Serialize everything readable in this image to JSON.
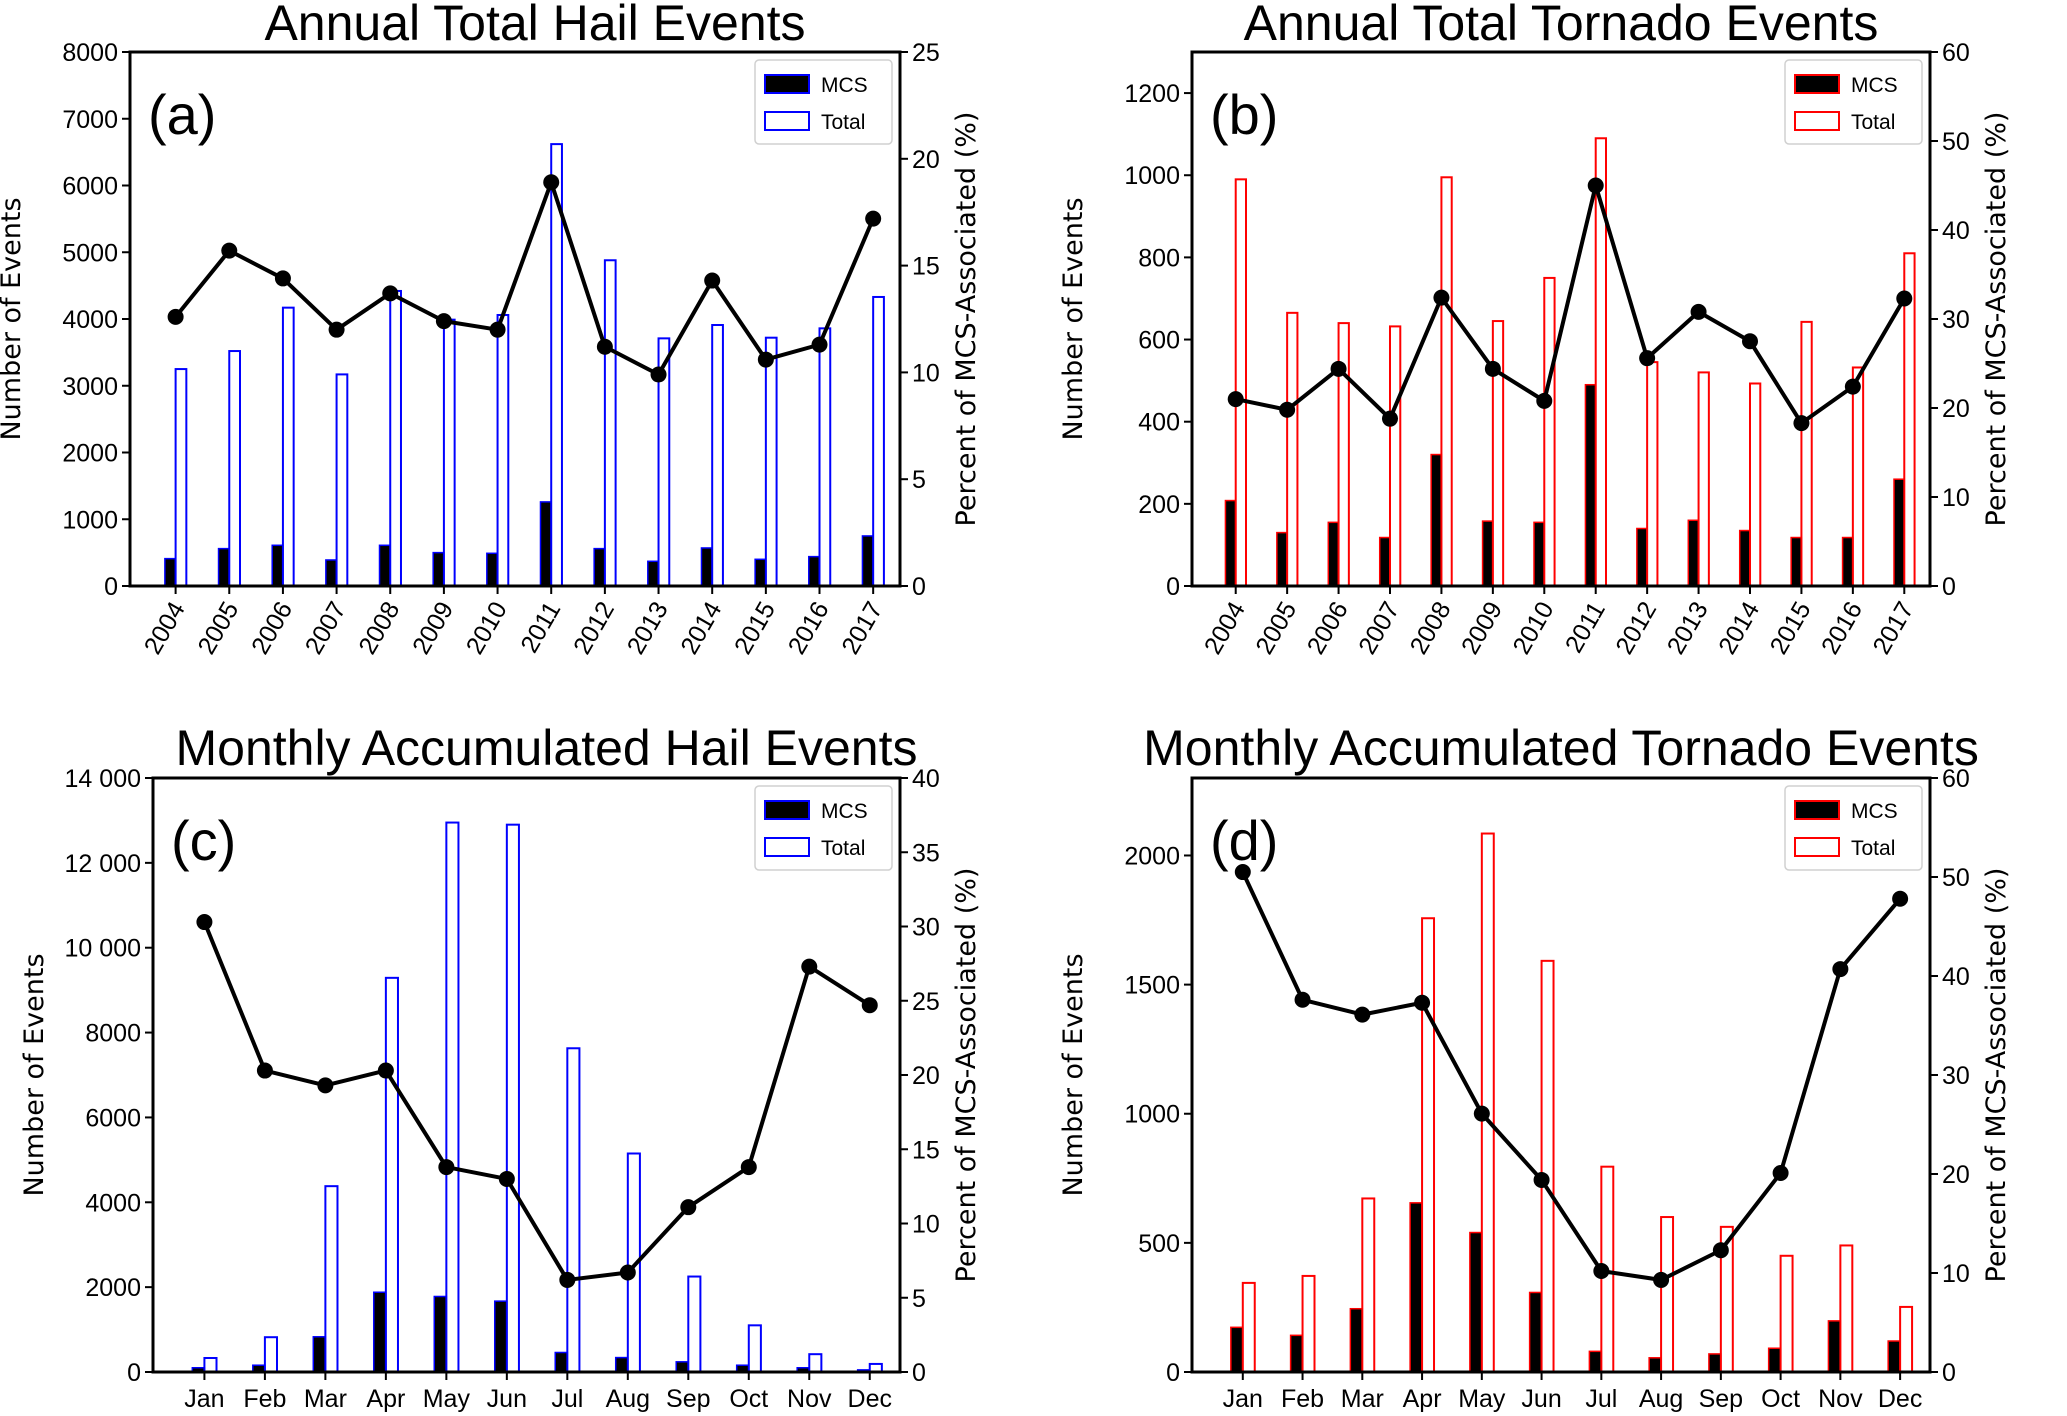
{
  "chart_data": [
    {
      "id": "a",
      "type": "bar",
      "title": "Annual Total Hail Events",
      "panel_label": "(a)",
      "xlabel": "",
      "ylabel": "Number of Events",
      "y2label": "Percent of MCS-Associated (%)",
      "categories": [
        "2004",
        "2005",
        "2006",
        "2007",
        "2008",
        "2009",
        "2010",
        "2011",
        "2012",
        "2013",
        "2014",
        "2015",
        "2016",
        "2017"
      ],
      "x_tick_rotation": "rotated",
      "ylim": [
        0,
        8000
      ],
      "yticks": [
        0,
        1000,
        2000,
        3000,
        4000,
        5000,
        6000,
        7000,
        8000
      ],
      "ytick_labels": [
        "0",
        "1000",
        "2000",
        "3000",
        "4000",
        "5000",
        "6000",
        "7000",
        "8000"
      ],
      "y2lim": [
        0,
        25
      ],
      "y2ticks": [
        0,
        5,
        10,
        15,
        20,
        25
      ],
      "y2tick_labels": [
        "0",
        "5",
        "10",
        "15",
        "20",
        "25"
      ],
      "bar_edge_color": "#0000ff",
      "legend": {
        "placement": "top-right",
        "entries": [
          "MCS",
          "Total"
        ]
      },
      "series": [
        {
          "name": "MCS",
          "kind": "bar-filled",
          "values": [
            410,
            560,
            610,
            390,
            610,
            500,
            490,
            1260,
            560,
            370,
            570,
            400,
            440,
            750
          ]
        },
        {
          "name": "Total",
          "kind": "bar-outline",
          "values": [
            3250,
            3520,
            4170,
            3170,
            4420,
            3990,
            4060,
            6620,
            4880,
            3710,
            3910,
            3720,
            3860,
            4330
          ]
        },
        {
          "name": "Percent of MCS-Associated",
          "kind": "line",
          "axis": "right",
          "values": [
            12.6,
            15.7,
            14.4,
            12.0,
            13.7,
            12.4,
            12.0,
            18.9,
            11.2,
            9.9,
            14.3,
            10.6,
            11.3,
            17.2
          ]
        }
      ]
    },
    {
      "id": "b",
      "type": "bar",
      "title": "Annual Total Tornado Events",
      "panel_label": "(b)",
      "xlabel": "",
      "ylabel": "Number of Events",
      "y2label": "Percent of MCS-Associated (%)",
      "categories": [
        "2004",
        "2005",
        "2006",
        "2007",
        "2008",
        "2009",
        "2010",
        "2011",
        "2012",
        "2013",
        "2014",
        "2015",
        "2016",
        "2017"
      ],
      "x_tick_rotation": "rotated",
      "ylim": [
        0,
        1300
      ],
      "yticks": [
        0,
        200,
        400,
        600,
        800,
        1000,
        1200
      ],
      "ytick_labels": [
        "0",
        "200",
        "400",
        "600",
        "800",
        "1000",
        "1200"
      ],
      "y2lim": [
        0,
        60
      ],
      "y2ticks": [
        0,
        10,
        20,
        30,
        40,
        50,
        60
      ],
      "y2tick_labels": [
        "0",
        "10",
        "20",
        "30",
        "40",
        "50",
        "60"
      ],
      "bar_edge_color": "#ff0000",
      "legend": {
        "placement": "top-right",
        "entries": [
          "MCS",
          "Total"
        ]
      },
      "series": [
        {
          "name": "MCS",
          "kind": "bar-filled",
          "values": [
            208,
            130,
            155,
            118,
            320,
            158,
            155,
            490,
            140,
            160,
            135,
            118,
            118,
            260
          ]
        },
        {
          "name": "Total",
          "kind": "bar-outline",
          "values": [
            990,
            665,
            640,
            632,
            995,
            645,
            750,
            1090,
            545,
            520,
            493,
            643,
            532,
            810
          ]
        },
        {
          "name": "Percent of MCS-Associated",
          "kind": "line",
          "axis": "right",
          "values": [
            21.0,
            19.8,
            24.4,
            18.8,
            32.4,
            24.4,
            20.8,
            45.0,
            25.6,
            30.8,
            27.5,
            18.3,
            22.4,
            32.3
          ]
        }
      ]
    },
    {
      "id": "c",
      "type": "bar",
      "title": "Monthly Accumulated Hail Events",
      "panel_label": "(c)",
      "xlabel": "",
      "ylabel": "Number of Events",
      "y2label": "Percent of MCS-Associated (%)",
      "categories": [
        "Jan",
        "Feb",
        "Mar",
        "Apr",
        "May",
        "Jun",
        "Jul",
        "Aug",
        "Sep",
        "Oct",
        "Nov",
        "Dec"
      ],
      "x_tick_rotation": "horizontal",
      "ylim": [
        0,
        14000
      ],
      "yticks": [
        0,
        2000,
        4000,
        6000,
        8000,
        10000,
        12000,
        14000
      ],
      "ytick_labels": [
        "0",
        "2000",
        "4000",
        "6000",
        "8000",
        "10 000",
        "12 000",
        "14 000"
      ],
      "y2lim": [
        0,
        40
      ],
      "y2ticks": [
        0,
        5,
        10,
        15,
        20,
        25,
        30,
        35,
        40
      ],
      "y2tick_labels": [
        "0",
        "5",
        "10",
        "15",
        "20",
        "25",
        "30",
        "35",
        "40"
      ],
      "bar_edge_color": "#0000ff",
      "legend": {
        "placement": "top-right",
        "entries": [
          "MCS",
          "Total"
        ]
      },
      "series": [
        {
          "name": "MCS",
          "kind": "bar-filled",
          "values": [
            100,
            160,
            830,
            1880,
            1780,
            1670,
            460,
            340,
            240,
            160,
            100,
            50
          ]
        },
        {
          "name": "Total",
          "kind": "bar-outline",
          "values": [
            330,
            820,
            4380,
            9290,
            12950,
            12900,
            7630,
            5150,
            2250,
            1100,
            420,
            190
          ]
        },
        {
          "name": "Percent of MCS-Associated",
          "kind": "line",
          "axis": "right",
          "values": [
            30.3,
            20.3,
            19.3,
            20.3,
            13.8,
            13.0,
            6.2,
            6.7,
            11.1,
            13.8,
            27.3,
            24.7
          ]
        }
      ]
    },
    {
      "id": "d",
      "type": "bar",
      "title": "Monthly Accumulated Tornado Events",
      "panel_label": "(d)",
      "xlabel": "",
      "ylabel": "Number of Events",
      "y2label": "Percent of MCS-Associated (%)",
      "categories": [
        "Jan",
        "Feb",
        "Mar",
        "Apr",
        "May",
        "Jun",
        "Jul",
        "Aug",
        "Sep",
        "Oct",
        "Nov",
        "Dec"
      ],
      "x_tick_rotation": "horizontal",
      "ylim": [
        0,
        2300
      ],
      "yticks": [
        0,
        500,
        1000,
        1500,
        2000
      ],
      "ytick_labels": [
        "0",
        "500",
        "1000",
        "1500",
        "2000"
      ],
      "y2lim": [
        0,
        60
      ],
      "y2ticks": [
        0,
        10,
        20,
        30,
        40,
        50,
        60
      ],
      "y2tick_labels": [
        "0",
        "10",
        "20",
        "30",
        "40",
        "50",
        "60"
      ],
      "bar_edge_color": "#ff0000",
      "legend": {
        "placement": "top-right",
        "entries": [
          "MCS",
          "Total"
        ]
      },
      "series": [
        {
          "name": "MCS",
          "kind": "bar-filled",
          "values": [
            173,
            142,
            245,
            655,
            540,
            308,
            80,
            55,
            70,
            92,
            198,
            120
          ]
        },
        {
          "name": "Total",
          "kind": "bar-outline",
          "values": [
            345,
            372,
            672,
            1757,
            2085,
            1592,
            795,
            600,
            562,
            450,
            490,
            252
          ]
        },
        {
          "name": "Percent of MCS-Associated",
          "kind": "line",
          "axis": "right",
          "values": [
            50.5,
            37.6,
            36.1,
            37.3,
            26.1,
            19.4,
            10.2,
            9.3,
            12.3,
            20.1,
            40.7,
            47.8
          ]
        }
      ]
    }
  ]
}
